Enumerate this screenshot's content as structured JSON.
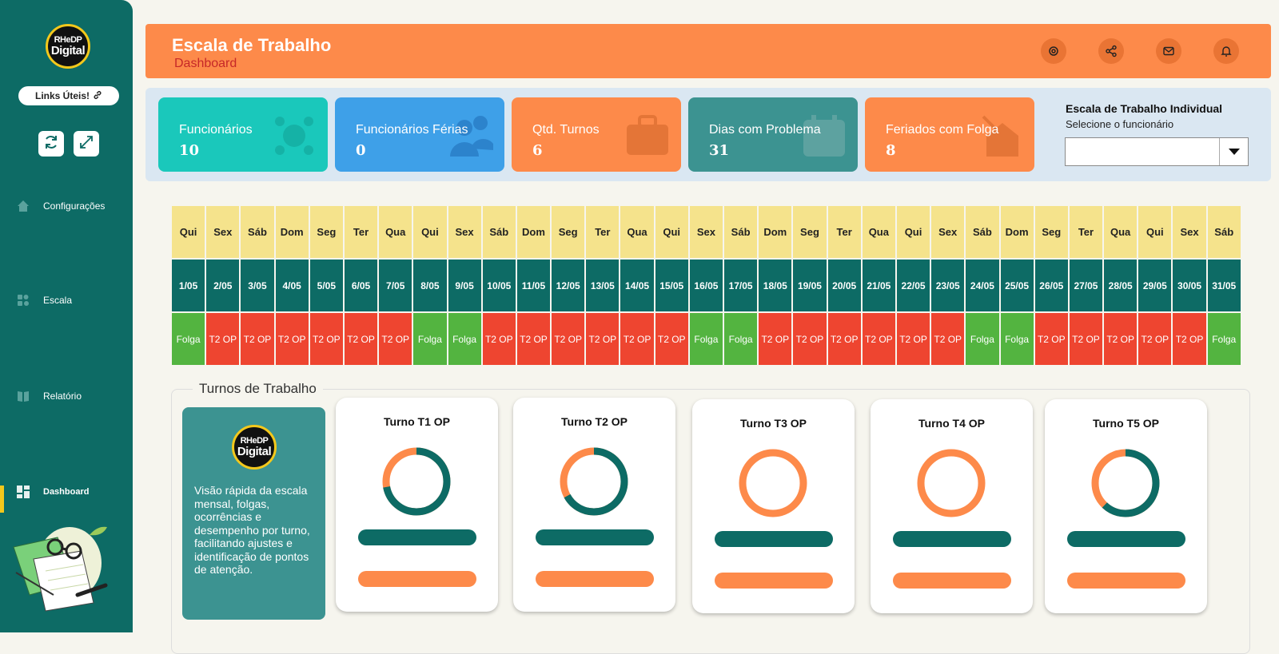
{
  "sidebar": {
    "logo_line1": "RHeDP",
    "logo_line2": "Digital",
    "links_label": "Links Úteis!",
    "nav": [
      {
        "label": "Configurações",
        "icon": "home-icon"
      },
      {
        "label": "Escala",
        "icon": "schedule-icon"
      },
      {
        "label": "Relatório",
        "icon": "report-icon"
      },
      {
        "label": "Dashboard",
        "icon": "dashboard-icon"
      }
    ],
    "active_item": "Dashboard"
  },
  "header": {
    "title": "Escala de Trabalho",
    "subtitle": "Dashboard",
    "icons": [
      "settings-icon",
      "share-icon",
      "mail-icon",
      "bell-icon"
    ]
  },
  "kpis": [
    {
      "label": "Funcionários",
      "value": "10",
      "color": "#1ac8bb",
      "icon": "employees-icon"
    },
    {
      "label": "Funcionários Férias",
      "value": "0",
      "color": "#3ea0e8",
      "icon": "vacation-icon"
    },
    {
      "label": "Qtd. Turnos",
      "value": "6",
      "color": "#fd8a4a",
      "icon": "briefcase-icon"
    },
    {
      "label": "Dias com Problema",
      "value": "31",
      "color": "#3c9391",
      "icon": "calendar-icon"
    },
    {
      "label": "Feriados com Folga",
      "value": "8",
      "color": "#fd8a4a",
      "icon": "holiday-icon"
    }
  ],
  "individual": {
    "title": "Escala de Trabalho Individual",
    "subtitle": "Selecione o funcionário",
    "selected": ""
  },
  "calendar": {
    "weekdays": [
      "Qui",
      "Sex",
      "Sáb",
      "Dom",
      "Seg",
      "Ter",
      "Qua",
      "Qui",
      "Sex",
      "Sáb",
      "Dom",
      "Seg",
      "Ter",
      "Qua",
      "Qui",
      "Sex",
      "Sáb",
      "Dom",
      "Seg",
      "Ter",
      "Qua",
      "Qui",
      "Sex",
      "Sáb",
      "Dom",
      "Seg",
      "Ter",
      "Qua",
      "Qui",
      "Sex",
      "Sáb"
    ],
    "dates": [
      "1/05",
      "2/05",
      "3/05",
      "4/05",
      "5/05",
      "6/05",
      "7/05",
      "8/05",
      "9/05",
      "10/05",
      "11/05",
      "12/05",
      "13/05",
      "14/05",
      "15/05",
      "16/05",
      "17/05",
      "18/05",
      "19/05",
      "20/05",
      "21/05",
      "22/05",
      "23/05",
      "24/05",
      "25/05",
      "26/05",
      "27/05",
      "28/05",
      "29/05",
      "30/05",
      "31/05"
    ],
    "status": [
      "Folga",
      "T2 OP",
      "T2 OP",
      "T2 OP",
      "T2 OP",
      "T2 OP",
      "T2 OP",
      "Folga",
      "Folga",
      "T2 OP",
      "T2 OP",
      "T2 OP",
      "T2 OP",
      "T2 OP",
      "T2 OP",
      "Folga",
      "Folga",
      "T2 OP",
      "T2 OP",
      "T2 OP",
      "T2 OP",
      "T2 OP",
      "T2 OP",
      "Folga",
      "Folga",
      "T2 OP",
      "T2 OP",
      "T2 OP",
      "T2 OP",
      "T2 OP",
      "Folga"
    ],
    "colors": {
      "Folga": "#53b440",
      "T2 OP": "#ee4530"
    }
  },
  "turnos": {
    "section_title": "Turnos de Trabalho",
    "info_text": "Visão rápida da escala mensal, folgas, ocorrências e desempenho por turno, facilitando ajustes e identificação de pontos de atenção.",
    "cards": [
      {
        "title": "Turno T1 OP",
        "dark_fraction": 0.72
      },
      {
        "title": "Turno T2 OP",
        "dark_fraction": 0.67
      },
      {
        "title": "Turno T3 OP",
        "dark_fraction": 0
      },
      {
        "title": "Turno T4 OP",
        "dark_fraction": 0
      },
      {
        "title": "Turno T5 OP",
        "dark_fraction": 0.62
      }
    ]
  },
  "colors": {
    "teal": "#0d6b65",
    "orange": "#fd8a4a",
    "yellow": "#f3c81c"
  }
}
